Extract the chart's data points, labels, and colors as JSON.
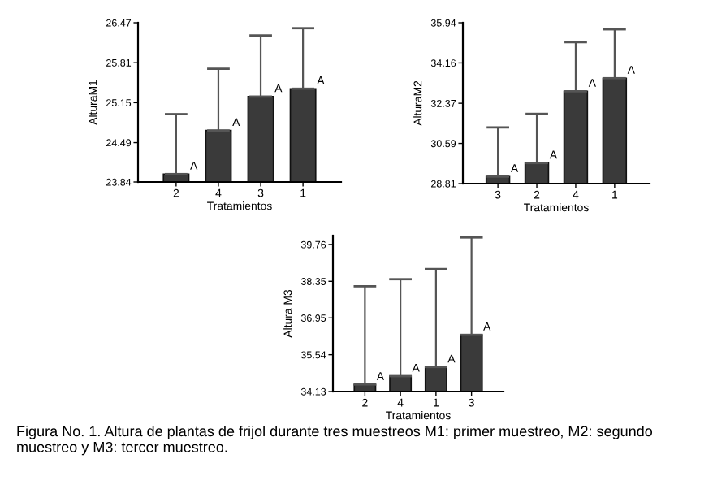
{
  "chart_data": [
    {
      "type": "bar",
      "ylabel": "AlturaM1",
      "xlabel": "Tratamientos",
      "categories": [
        "2",
        "4",
        "3",
        "1"
      ],
      "values": [
        23.97,
        24.69,
        25.25,
        25.38
      ],
      "errors": [
        [
          23.97,
          24.96
        ],
        [
          24.69,
          25.71
        ],
        [
          25.25,
          26.26
        ],
        [
          25.38,
          26.38
        ]
      ],
      "color": "#3a3a3a",
      "ylim": [
        23.84,
        26.47
      ],
      "yticks": [
        23.84,
        24.49,
        25.15,
        25.81,
        26.47
      ],
      "grid": false,
      "annotations": [
        {
          "text": "A",
          "x": "2",
          "y": 23.97
        },
        {
          "text": "A",
          "x": "4",
          "y": 24.69
        },
        {
          "text": "A",
          "x": "3",
          "y": 25.25
        },
        {
          "text": "A",
          "x": "1",
          "y": 25.38
        }
      ]
    },
    {
      "type": "bar",
      "ylabel": "AlturaM2",
      "xlabel": "Tratamientos",
      "categories": [
        "3",
        "2",
        "4",
        "1"
      ],
      "values": [
        29.12,
        29.72,
        32.9,
        33.48
      ],
      "errors": [
        [
          29.12,
          31.3
        ],
        [
          29.72,
          31.9
        ],
        [
          32.9,
          35.08
        ],
        [
          33.48,
          35.65
        ]
      ],
      "color": "#3a3a3a",
      "ylim": [
        28.81,
        35.94
      ],
      "yticks": [
        28.81,
        30.59,
        32.37,
        34.16,
        35.94
      ],
      "grid": false,
      "annotations": [
        {
          "text": "A",
          "x": "3",
          "y": 29.12
        },
        {
          "text": "A",
          "x": "2",
          "y": 29.72
        },
        {
          "text": "A",
          "x": "4",
          "y": 32.9
        },
        {
          "text": "A",
          "x": "1",
          "y": 33.48
        }
      ]
    },
    {
      "type": "bar",
      "ylabel": "Altura M3",
      "xlabel": "Tratamientos",
      "categories": [
        "2",
        "4",
        "1",
        "3"
      ],
      "values": [
        34.4,
        34.72,
        35.07,
        36.3
      ],
      "errors": [
        [
          34.4,
          38.16
        ],
        [
          34.72,
          38.43
        ],
        [
          35.07,
          38.82
        ],
        [
          36.3,
          40.03
        ]
      ],
      "color": "#3a3a3a",
      "ylim": [
        34.13,
        40.1
      ],
      "yticks": [
        34.13,
        35.54,
        36.95,
        38.35,
        39.76
      ],
      "grid": false,
      "annotations": [
        {
          "text": "A",
          "x": "2",
          "y": 34.4
        },
        {
          "text": "A",
          "x": "4",
          "y": 34.72
        },
        {
          "text": "A",
          "x": "1",
          "y": 35.07
        },
        {
          "text": "A",
          "x": "3",
          "y": 36.3
        },
        "Figura No. 1. Altura de plantas de frijol durante tres muestreos M1: primer muestreo, M2: segundo muestreo y M3: tercer muestreo."
      ]
    }
  ]
}
